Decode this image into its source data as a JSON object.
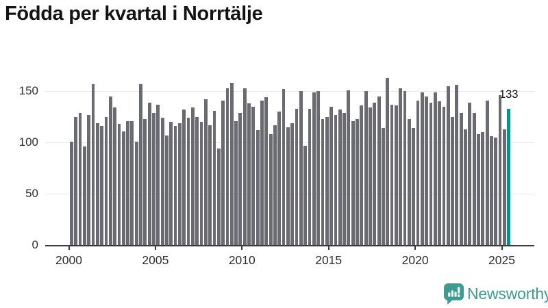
{
  "page": {
    "title": "Födda per kvartal i Norrtälje"
  },
  "chart_data": {
    "type": "bar",
    "title": "Födda per kvartal i Norrtälje",
    "xlabel": "",
    "ylabel": "",
    "x_unit": "quarter",
    "start_period": "2000 Q1",
    "end_period": "2025 Q2",
    "x_ticks": [
      "2000",
      "2005",
      "2010",
      "2015",
      "2020",
      "2025"
    ],
    "y_ticks": [
      0,
      50,
      100,
      150
    ],
    "ylim": [
      0,
      165
    ],
    "grid": "horizontal",
    "legend": "none",
    "bar_color": "#6a6a72",
    "values": [
      101,
      125,
      129,
      96,
      127,
      157,
      119,
      116,
      125,
      145,
      134,
      118,
      111,
      121,
      121,
      101,
      157,
      123,
      139,
      129,
      137,
      124,
      107,
      120,
      116,
      119,
      132,
      124,
      134,
      125,
      120,
      142,
      117,
      131,
      94,
      141,
      153,
      158,
      121,
      129,
      153,
      138,
      135,
      112,
      141,
      144,
      108,
      117,
      130,
      152,
      115,
      119,
      133,
      150,
      97,
      133,
      149,
      150,
      123,
      125,
      135,
      127,
      132,
      129,
      151,
      121,
      123,
      136,
      150,
      134,
      139,
      145,
      114,
      163,
      137,
      136,
      153,
      150,
      123,
      114,
      141,
      149,
      145,
      139,
      149,
      140,
      135,
      155,
      125,
      156,
      129,
      113,
      139,
      129,
      108,
      110,
      141,
      106,
      105,
      146,
      113,
      133
    ],
    "highlight": {
      "index": 101,
      "period": "2025 Q2",
      "value": 133,
      "label": "133",
      "color": "#00968f"
    }
  },
  "branding": {
    "name": "Newsworthy",
    "color": "#3E9B90"
  }
}
